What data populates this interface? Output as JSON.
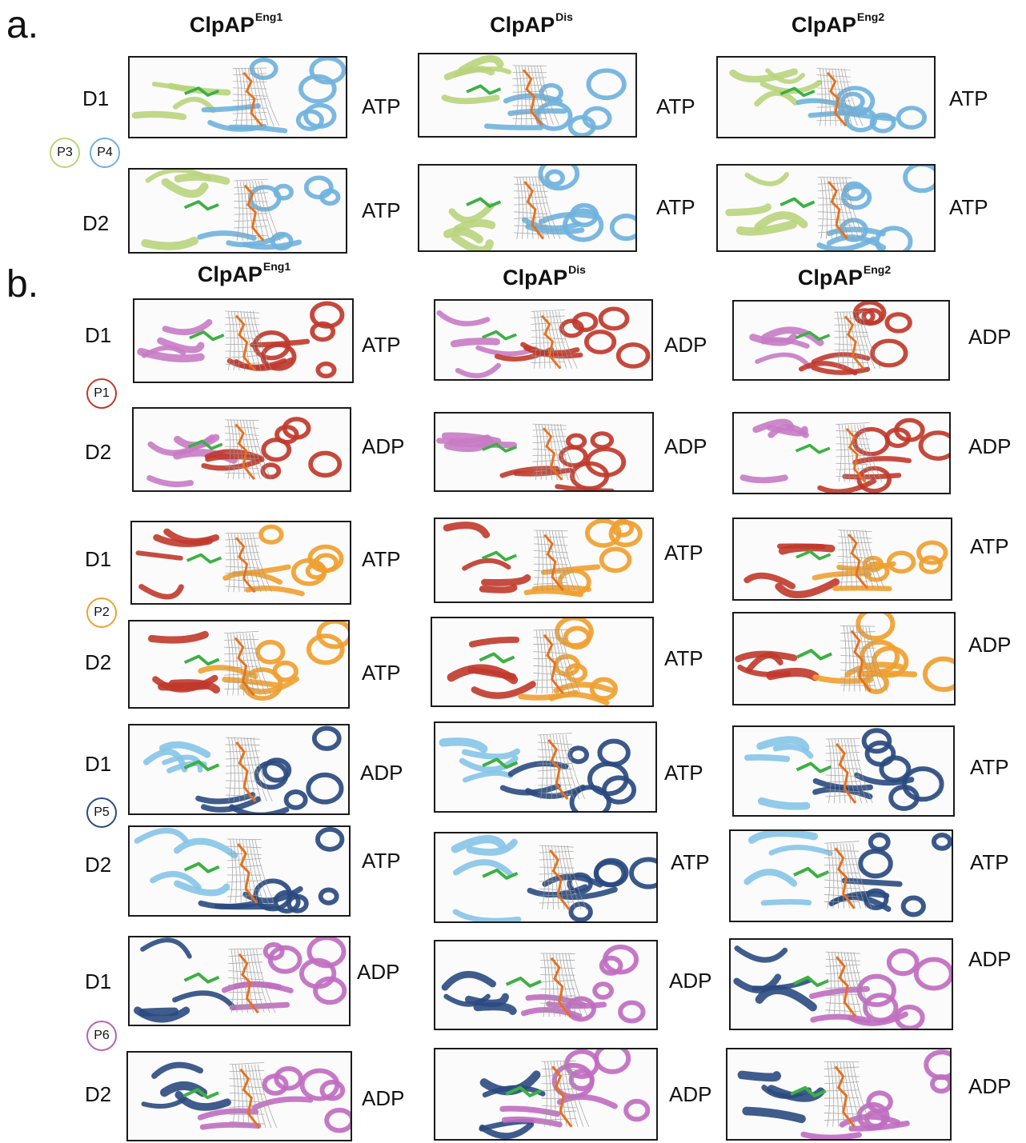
{
  "panel_a": {
    "letter": "a.",
    "columns": [
      {
        "name": "ClpAP",
        "sup": "Eng1"
      },
      {
        "name": "ClpAP",
        "sup": "Dis"
      },
      {
        "name": "ClpAP",
        "sup": "Eng2"
      }
    ],
    "subunits": [
      {
        "label": "P3",
        "color": "#b9d47c"
      },
      {
        "label": "P4",
        "color": "#6fb2dd"
      }
    ],
    "rows": [
      {
        "domain": "D1",
        "nucleotides": [
          "ATP",
          "ATP",
          "ATP"
        ]
      },
      {
        "domain": "D2",
        "nucleotides": [
          "ATP",
          "ATP",
          "ATP"
        ]
      }
    ]
  },
  "panel_b": {
    "letter": "b.",
    "columns": [
      {
        "name": "ClpAP",
        "sup": "Eng1"
      },
      {
        "name": "ClpAP",
        "sup": "Dis"
      },
      {
        "name": "ClpAP",
        "sup": "Eng2"
      }
    ],
    "groups": [
      {
        "subunit": "P1",
        "color": "#c0392b",
        "neighbor_color": "#c77bc4",
        "main_color": "#c0392b",
        "rows": [
          {
            "domain": "D1",
            "nucleotides": [
              "ATP",
              "ADP",
              "ADP"
            ]
          },
          {
            "domain": "D2",
            "nucleotides": [
              "ADP",
              "ADP",
              "ADP"
            ]
          }
        ]
      },
      {
        "subunit": "P2",
        "color": "#f0a030",
        "neighbor_color": "#c0392b",
        "main_color": "#f0a030",
        "rows": [
          {
            "domain": "D1",
            "nucleotides": [
              "ATP",
              "ATP",
              "ATP"
            ]
          },
          {
            "domain": "D2",
            "nucleotides": [
              "ATP",
              "ATP",
              "ADP"
            ]
          }
        ]
      },
      {
        "subunit": "P5",
        "color": "#2a4a80",
        "neighbor_color": "#86c4e8",
        "main_color": "#2a4a80",
        "rows": [
          {
            "domain": "D1",
            "nucleotides": [
              "ADP",
              "ATP",
              "ATP"
            ]
          },
          {
            "domain": "D2",
            "nucleotides": [
              "ATP",
              "ATP",
              "ATP"
            ]
          }
        ]
      },
      {
        "subunit": "P6",
        "color": "#b463b4",
        "neighbor_color": "#2a4a80",
        "main_color": "#c06cc0",
        "rows": [
          {
            "domain": "D1",
            "nucleotides": [
              "ADP",
              "ADP",
              "ADP"
            ]
          },
          {
            "domain": "D2",
            "nucleotides": [
              "ADP",
              "ADP",
              "ADP"
            ]
          }
        ]
      }
    ]
  },
  "colors": {
    "ligand_mesh": "#9a9a9a",
    "arginine_finger": "#3cb043",
    "phosphate": "#e8701a"
  }
}
